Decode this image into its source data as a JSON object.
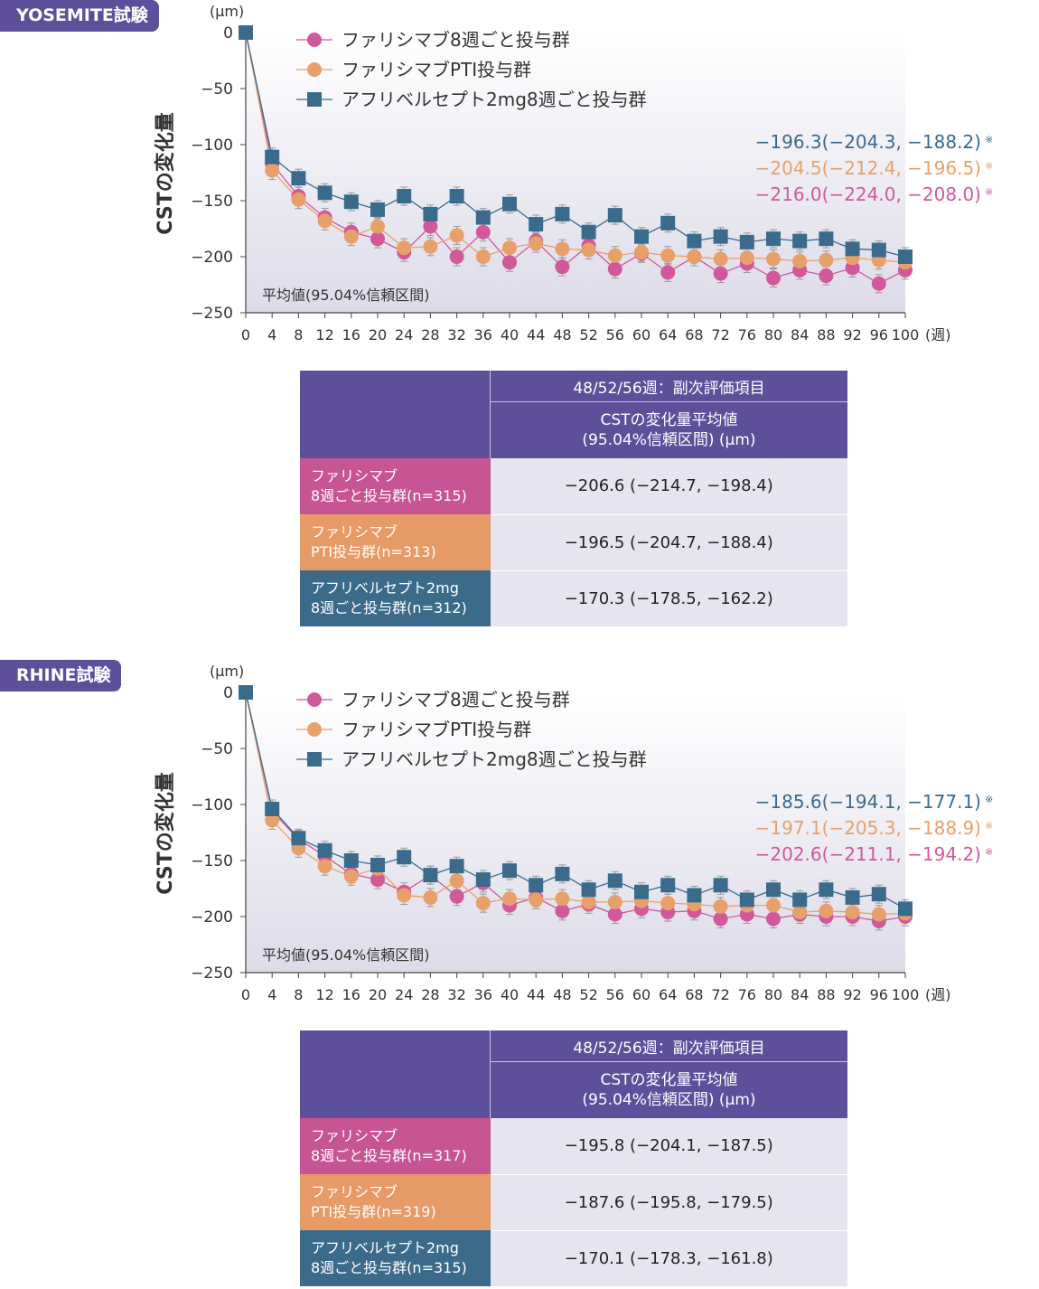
{
  "colors": {
    "purple": "#5e4f9b",
    "pink": "#d0589b",
    "orange": "#e8a06a",
    "blue": "#3a6b8c"
  },
  "panels": [
    {
      "trial_label": "YOSEMITE試験",
      "chart_data": {
        "type": "line",
        "title": "YOSEMITE試験",
        "ylabel": "CSTの変化量",
        "yunit": "(μm)",
        "xunit": "(週)",
        "ylim": [
          -250,
          0
        ],
        "yticks": [
          0,
          -50,
          -100,
          -150,
          -200,
          -250
        ],
        "x": [
          0,
          4,
          8,
          12,
          16,
          20,
          24,
          28,
          32,
          36,
          40,
          44,
          48,
          52,
          56,
          60,
          64,
          68,
          72,
          76,
          80,
          84,
          88,
          92,
          96,
          100
        ],
        "note": "平均値(95.04%信頼区間)",
        "series": [
          {
            "name": "ファリシマブ8週ごと投与群",
            "marker": "circle",
            "values": [
              0,
              -117,
              -146,
              -165,
              -178,
              -184,
              -196,
              -173,
              -200,
              -178,
              -205,
              -186,
              -209,
              -190,
              -211,
              -197,
              -214,
              -200,
              -215,
              -206,
              -219,
              -212,
              -217,
              -210,
              -224,
              -212
            ],
            "summary": "−216.0(−224.0, −208.0)"
          },
          {
            "name": "ファリシマブPTI投与群",
            "marker": "circle",
            "values": [
              0,
              -123,
              -149,
              -168,
              -182,
              -173,
              -192,
              -191,
              -181,
              -200,
              -192,
              -188,
              -193,
              -194,
              -199,
              -196,
              -199,
              -200,
              -202,
              -201,
              -202,
              -204,
              -203,
              -201,
              -203,
              -205
            ],
            "summary": "−204.5(−212.4, −196.5)"
          },
          {
            "name": "アフリベルセプト2mg8週ごと投与群",
            "marker": "square",
            "values": [
              0,
              -111,
              -130,
              -143,
              -151,
              -158,
              -146,
              -162,
              -146,
              -165,
              -153,
              -171,
              -162,
              -178,
              -163,
              -182,
              -170,
              -186,
              -182,
              -187,
              -184,
              -186,
              -184,
              -193,
              -194,
              -200
            ],
            "summary": "−196.3(−204.3, −188.2)"
          }
        ],
        "footnote_mark": "※"
      },
      "table": {
        "header_top": "48/52/56週：副次評価項目",
        "header_sub_1": "CSTの変化量平均値",
        "header_sub_2": "(95.04%信頼区間) (μm)",
        "rows": [
          {
            "label_1": "ファリシマブ",
            "label_2": "8週ごと投与群(n=315)",
            "value": "−206.6 (−214.7, −198.4)"
          },
          {
            "label_1": "ファリシマブ",
            "label_2": "PTI投与群(n=313)",
            "value": "−196.5 (−204.7, −188.4)"
          },
          {
            "label_1": "アフリベルセプト2mg",
            "label_2": "8週ごと投与群(n=312)",
            "value": "−170.3 (−178.5, −162.2)"
          }
        ]
      }
    },
    {
      "trial_label": "RHINE試験",
      "chart_data": {
        "type": "line",
        "title": "RHINE試験",
        "ylabel": "CSTの変化量",
        "yunit": "(μm)",
        "xunit": "(週)",
        "ylim": [
          -250,
          0
        ],
        "yticks": [
          0,
          -50,
          -100,
          -150,
          -200,
          -250
        ],
        "x": [
          0,
          4,
          8,
          12,
          16,
          20,
          24,
          28,
          32,
          36,
          40,
          44,
          48,
          52,
          56,
          60,
          64,
          68,
          72,
          76,
          80,
          84,
          88,
          92,
          96,
          100
        ],
        "note": "平均値(95.04%信頼区間)",
        "series": [
          {
            "name": "ファリシマブ8週ごと投与群",
            "marker": "circle",
            "values": [
              0,
              -106,
              -131,
              -146,
              -162,
              -167,
              -178,
              -163,
              -182,
              -170,
              -190,
              -183,
              -195,
              -189,
              -198,
              -193,
              -196,
              -195,
              -202,
              -198,
              -202,
              -198,
              -200,
              -200,
              -204,
              -200
            ],
            "summary": "−202.6(−211.1, −194.2)"
          },
          {
            "name": "ファリシマブPTI投与群",
            "marker": "circle",
            "values": [
              0,
              -114,
              -139,
              -155,
              -164,
              -157,
              -181,
              -183,
              -168,
              -188,
              -184,
              -185,
              -184,
              -187,
              -187,
              -186,
              -188,
              -189,
              -191,
              -190,
              -190,
              -196,
              -195,
              -196,
              -198,
              -197
            ],
            "summary": "−197.1(−205.3, −188.9)"
          },
          {
            "name": "アフリベルセプト2mg8週ごと投与群",
            "marker": "square",
            "values": [
              0,
              -104,
              -130,
              -141,
              -150,
              -154,
              -147,
              -163,
              -155,
              -167,
              -159,
              -172,
              -162,
              -176,
              -168,
              -178,
              -172,
              -181,
              -172,
              -185,
              -176,
              -185,
              -176,
              -183,
              -180,
              -193
            ],
            "summary": "−185.6(−194.1, −177.1)"
          }
        ],
        "footnote_mark": "※"
      },
      "table": {
        "header_top": "48/52/56週：副次評価項目",
        "header_sub_1": "CSTの変化量平均値",
        "header_sub_2": "(95.04%信頼区間) (μm)",
        "rows": [
          {
            "label_1": "ファリシマブ",
            "label_2": "8週ごと投与群(n=317)",
            "value": "−195.8 (−204.1, −187.5)"
          },
          {
            "label_1": "ファリシマブ",
            "label_2": "PTI投与群(n=319)",
            "value": "−187.6 (−195.8, −179.5)"
          },
          {
            "label_1": "アフリベルセプト2mg",
            "label_2": "8週ごと投与群(n=315)",
            "value": "−170.1 (−178.3, −161.8)"
          }
        ]
      }
    }
  ]
}
